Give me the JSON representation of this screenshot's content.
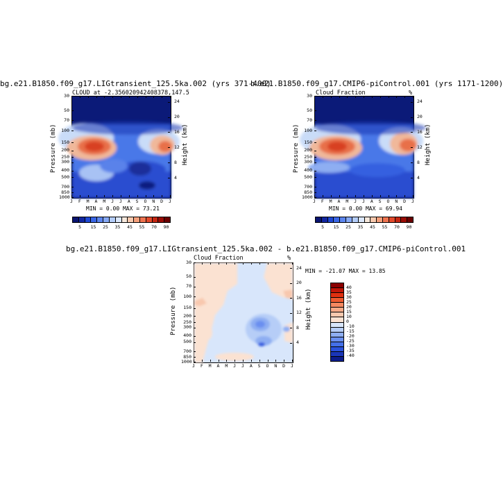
{
  "charts": [
    {
      "title": "bg.e21.B1850.f09_g17.LIGtransient_125.5ka.002 (yrs 371-400)",
      "subtitle": "CLOUD at -2.356020942408378,147.5",
      "unit": "",
      "stats": "MIN =   0.00 MAX =  73.21"
    },
    {
      "title": "b.e21.B1850.f09_g17.CMIP6-piControl.001 (yrs 1171-1200)",
      "subtitle": "Cloud Fraction",
      "unit": "%",
      "stats": "MIN =   0.00 MAX =  69.94"
    },
    {
      "title": "bg.e21.B1850.f09_g17.LIGtransient_125.5ka.002 - b.e21.B1850.f09_g17.CMIP6-piControl.001",
      "subtitle": "Cloud Fraction",
      "unit": "%",
      "stats": "MIN = -21.07 MAX =  13.85"
    }
  ],
  "axes": {
    "ylabel": "Pressure (mb)",
    "ylabel_right": "Height (km)",
    "pressure_ticks": [
      "30",
      "50",
      "70",
      "100",
      "150",
      "200",
      "250",
      "300",
      "400",
      "500",
      "700",
      "850",
      "1000"
    ],
    "height_ticks": [
      "24",
      "20",
      "16",
      "12",
      "8",
      "4"
    ],
    "months": [
      "J",
      "F",
      "M",
      "A",
      "M",
      "J",
      "J",
      "A",
      "S",
      "O",
      "N",
      "D",
      "J"
    ]
  },
  "colorbars": {
    "main_labels": [
      "5",
      "15",
      "25",
      "35",
      "45",
      "55",
      "70",
      "90"
    ],
    "main_colors": [
      "#0a1470",
      "#1226a0",
      "#1f48d4",
      "#3a66e6",
      "#5d86ee",
      "#86a8f4",
      "#b3ccf8",
      "#dbe7fb",
      "#f6e8dc",
      "#f8c9ae",
      "#f4a07c",
      "#ee7350",
      "#e24a2c",
      "#c42612",
      "#9a0c06",
      "#6a0000"
    ],
    "diff_labels": [
      "40",
      "35",
      "30",
      "25",
      "20",
      "15",
      "10",
      "0",
      "-10",
      "-15",
      "-20",
      "-25",
      "-30",
      "-35",
      "-40"
    ],
    "diff_colors": [
      "#8a0000",
      "#c01608",
      "#e03010",
      "#ee5a30",
      "#f48860",
      "#f6aa88",
      "#f8c8ae",
      "#fbe2d2",
      "#d8e6fb",
      "#b6cdf7",
      "#8eaef2",
      "#6a8ff0",
      "#4470e8",
      "#2a52dc",
      "#1a36b8",
      "#0c1c8a"
    ]
  },
  "chart_data": [
    {
      "type": "heatmap",
      "title": "bg.e21.B1850.f09_g17.LIGtransient_125.5ka.002 (yrs 371-400)",
      "x": [
        "J",
        "F",
        "M",
        "A",
        "M",
        "J",
        "J",
        "A",
        "S",
        "O",
        "N",
        "D",
        "J"
      ],
      "y_pressure_mb": [
        30,
        50,
        70,
        100,
        150,
        200,
        250,
        300,
        400,
        500,
        700,
        850,
        1000
      ],
      "min": 0.0,
      "max": 73.21,
      "contour_levels": [
        5,
        10,
        15,
        20,
        25,
        30,
        35,
        40,
        45,
        50,
        55,
        60,
        70,
        80,
        90
      ]
    },
    {
      "type": "heatmap",
      "title": "b.e21.B1850.f09_g17.CMIP6-piControl.001 (yrs 1171-1200)",
      "x": [
        "J",
        "F",
        "M",
        "A",
        "M",
        "J",
        "J",
        "A",
        "S",
        "O",
        "N",
        "D",
        "J"
      ],
      "y_pressure_mb": [
        30,
        50,
        70,
        100,
        150,
        200,
        250,
        300,
        400,
        500,
        700,
        850,
        1000
      ],
      "min": 0.0,
      "max": 69.94,
      "contour_levels": [
        5,
        10,
        15,
        20,
        25,
        30,
        35,
        40,
        45,
        50,
        55,
        60,
        70,
        80,
        90
      ]
    },
    {
      "type": "heatmap",
      "title": "bg.e21.B1850.f09_g17.LIGtransient_125.5ka.002 - b.e21.B1850.f09_g17.CMIP6-piControl.001",
      "x": [
        "J",
        "F",
        "M",
        "A",
        "M",
        "J",
        "J",
        "A",
        "S",
        "O",
        "N",
        "D",
        "J"
      ],
      "y_pressure_mb": [
        30,
        50,
        70,
        100,
        150,
        200,
        250,
        300,
        400,
        500,
        700,
        850,
        1000
      ],
      "min": -21.07,
      "max": 13.85,
      "contour_levels": [
        -40,
        -35,
        -30,
        -25,
        -20,
        -15,
        -10,
        0,
        10,
        15,
        20,
        25,
        30,
        35,
        40
      ]
    }
  ]
}
